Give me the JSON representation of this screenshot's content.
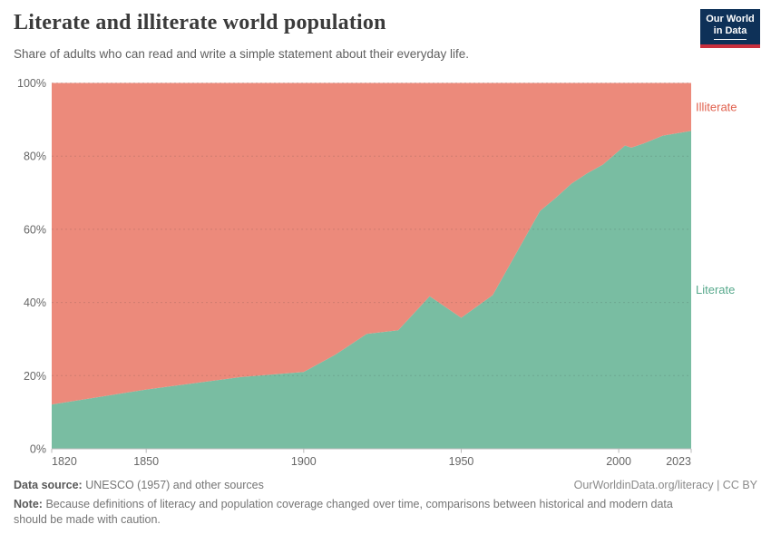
{
  "header": {
    "title": "Literate and illiterate world population",
    "subtitle": "Share of adults who can read and write a simple statement about their everyday life.",
    "logo": {
      "line1": "Our World",
      "line2": "in Data"
    }
  },
  "chart_data": {
    "type": "area",
    "stacked": true,
    "title": "Literate and illiterate world population",
    "x": [
      1820,
      1850,
      1880,
      1900,
      1910,
      1920,
      1930,
      1940,
      1950,
      1960,
      1975,
      1980,
      1985,
      1990,
      1995,
      2000,
      2002,
      2004,
      2008,
      2014,
      2023
    ],
    "series": [
      {
        "name": "Literate",
        "color": "#79bda2",
        "label_color": "#57a98c",
        "values": [
          12.1,
          16.2,
          19.6,
          21.0,
          25.7,
          31.4,
          32.4,
          41.7,
          35.8,
          42.0,
          65.0,
          68.6,
          72.5,
          75.3,
          77.7,
          81.4,
          82.9,
          82.3,
          83.5,
          85.6,
          86.9
        ]
      },
      {
        "name": "Illiterate",
        "color": "#ec8a7b",
        "label_color": "#e0604d",
        "values": [
          87.9,
          83.8,
          80.4,
          79.0,
          74.3,
          68.6,
          67.6,
          58.3,
          64.2,
          58.0,
          35.0,
          31.4,
          27.5,
          24.7,
          22.3,
          18.6,
          17.1,
          17.7,
          16.5,
          14.4,
          13.1
        ]
      }
    ],
    "xlabel": "",
    "ylabel": "",
    "xlim": [
      1820,
      2023
    ],
    "ylim": [
      0,
      100
    ],
    "xticks": {
      "values": [
        1820,
        1850,
        1900,
        1950,
        2000,
        2023
      ],
      "labels": [
        "1820",
        "1850",
        "1900",
        "1950",
        "2000",
        "2023"
      ]
    },
    "yticks": {
      "values": [
        0,
        20,
        40,
        60,
        80,
        100
      ],
      "labels": [
        "0%",
        "20%",
        "40%",
        "60%",
        "80%",
        "100%"
      ]
    },
    "grid": "horizontal-dashed",
    "legend": "labels-right-of-plot"
  },
  "footer": {
    "datasource_label": "Data source:",
    "datasource_value": "UNESCO (1957) and other sources",
    "link": "OurWorldinData.org/literacy | CC BY",
    "note_label": "Note:",
    "note_value": "Because definitions of literacy and population coverage changed over time, comparisons between historical and modern data should be made with caution."
  },
  "colors": {
    "literate_area": "#79bda2",
    "illiterate_area": "#ec8a7b",
    "literate_label": "#57a98c",
    "illiterate_label": "#e0604d",
    "logo_bg": "#0e3158",
    "logo_stripe": "#c9303e",
    "axis_text": "#666666",
    "baseline": "#b9b9b9",
    "gridline": "#3a3a3a"
  }
}
